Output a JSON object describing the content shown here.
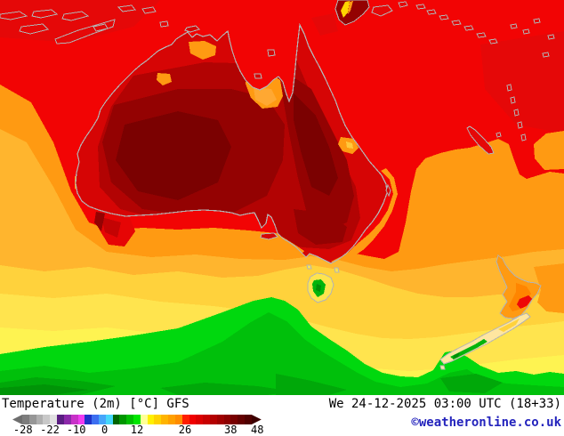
{
  "labels": {
    "title": "Temperature (2m) [°C] GFS",
    "datetime": "We 24-12-2025 03:00 UTC (18+33)",
    "copyright": "©weatheronline.co.uk"
  },
  "legend": {
    "unit": "°C",
    "ticks": [
      {
        "label": "-28",
        "pct": 4.2
      },
      {
        "label": "-22",
        "pct": 15.0
      },
      {
        "label": "-10",
        "pct": 25.6
      },
      {
        "label": "0",
        "pct": 37.0
      },
      {
        "label": "12",
        "pct": 50.0
      },
      {
        "label": "26",
        "pct": 69.3
      },
      {
        "label": "38",
        "pct": 87.6
      },
      {
        "label": "48",
        "pct": 98.3
      }
    ],
    "colors": [
      "#6e6e6e",
      "#7d7d7d",
      "#969696",
      "#afafaf",
      "#c8c8c8",
      "#e1e1e1",
      "#5a1e82",
      "#8c28aa",
      "#c832c8",
      "#f03cf0",
      "#1e32c8",
      "#3c6ef0",
      "#46a5fa",
      "#46d7fa",
      "#006400",
      "#009600",
      "#00be00",
      "#00e600",
      "#ffff96",
      "#fff000",
      "#ffd200",
      "#ffb400",
      "#ffa000",
      "#ff8c00",
      "#ff1e00",
      "#f00000",
      "#dc0000",
      "#c80000",
      "#b40000",
      "#a00000",
      "#8c0000",
      "#780000",
      "#640000",
      "#500000",
      "#3c0000"
    ]
  },
  "palette": {
    "ocean_red": "#f20404",
    "red_var": "#e50808",
    "land_red": "#d60505",
    "dark_red_1": "#b20303",
    "dark_red_2": "#940202",
    "dark_red_3": "#7b0101",
    "orange": "#ff9a12",
    "orange_deep": "#ff8500",
    "orange_core": "#ffa832",
    "amber": "#ffb52e",
    "deep_yellow": "#ffd23c",
    "yellow": "#ffe44e",
    "bright_yellow": "#fef351",
    "pale_cream": "#ffe6a0",
    "green": "#00d80e",
    "green_mid": "#00c00b",
    "green_dark": "#00a809",
    "green_darker": "#009407",
    "tas_green": "#00b40c",
    "green_dot": "#008f08",
    "bight_red": "#e60505",
    "bight_core": "#c40303",
    "nz_red": "#ee0808",
    "png_yellow": "#ffd400",
    "qld_dot": "#ffc83c",
    "coastline": "#b3b3b3",
    "text": "#000000",
    "copyright_blue": "#2424bd",
    "background": "#ffffff"
  }
}
